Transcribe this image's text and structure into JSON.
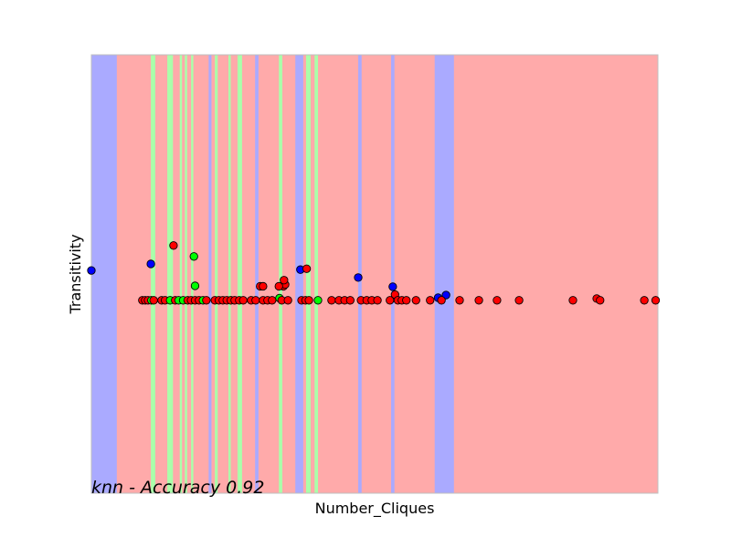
{
  "chart_data": {
    "type": "scatter",
    "title": "",
    "xlabel": "Number_Cliques",
    "ylabel": "Transitivity",
    "annotation": "knn - Accuracy 0.92",
    "x_ticks_shown": false,
    "y_ticks_shown": false,
    "grid": false,
    "xlim": [
      0,
      1000
    ],
    "ylim": [
      0,
      1000
    ],
    "class_colors": {
      "red": {
        "region": "#FFAAAA",
        "point": "#FF0000"
      },
      "green": {
        "region": "#AAFFAA",
        "point": "#00FF00"
      },
      "blue": {
        "region": "#AAAAFF",
        "point": "#0000FF"
      }
    },
    "decision_regions": [
      {
        "class": "blue",
        "from": 0,
        "to": 45
      },
      {
        "class": "red",
        "from": 45,
        "to": 105
      },
      {
        "class": "green",
        "from": 105,
        "to": 113
      },
      {
        "class": "blue",
        "from": 105,
        "to": 105
      },
      {
        "class": "red",
        "from": 113,
        "to": 118
      },
      {
        "class": "green",
        "from": 134,
        "to": 144
      },
      {
        "class": "green",
        "from": 156,
        "to": 160
      },
      {
        "class": "green",
        "from": 165,
        "to": 169
      },
      {
        "class": "green",
        "from": 176,
        "to": 180
      },
      {
        "class": "blue",
        "from": 207,
        "to": 212
      },
      {
        "class": "green",
        "from": 218,
        "to": 223
      },
      {
        "class": "green",
        "from": 242,
        "to": 246
      },
      {
        "class": "green",
        "from": 258,
        "to": 266
      },
      {
        "class": "blue",
        "from": 289,
        "to": 295
      },
      {
        "class": "green",
        "from": 331,
        "to": 337
      },
      {
        "class": "blue",
        "from": 360,
        "to": 374
      },
      {
        "class": "green",
        "from": 379,
        "to": 387
      },
      {
        "class": "green",
        "from": 394,
        "to": 400
      },
      {
        "class": "blue",
        "from": 471,
        "to": 477
      },
      {
        "class": "blue",
        "from": 529,
        "to": 535
      },
      {
        "class": "blue",
        "from": 606,
        "to": 640
      }
    ],
    "points": [
      {
        "x": 0,
        "y": 508,
        "c": "blue"
      },
      {
        "x": 105,
        "y": 523,
        "c": "blue"
      },
      {
        "x": 145,
        "y": 565,
        "c": "red"
      },
      {
        "x": 181,
        "y": 540,
        "c": "green"
      },
      {
        "x": 183,
        "y": 473,
        "c": "green"
      },
      {
        "x": 298,
        "y": 472,
        "c": "red"
      },
      {
        "x": 339,
        "y": 472,
        "c": "red"
      },
      {
        "x": 342,
        "y": 476,
        "c": "red"
      },
      {
        "x": 331,
        "y": 472,
        "c": "red"
      },
      {
        "x": 303,
        "y": 472,
        "c": "red"
      },
      {
        "x": 332,
        "y": 445,
        "c": "green"
      },
      {
        "x": 340,
        "y": 486,
        "c": "red"
      },
      {
        "x": 369,
        "y": 510,
        "c": "blue"
      },
      {
        "x": 380,
        "y": 512,
        "c": "red"
      },
      {
        "x": 471,
        "y": 492,
        "c": "blue"
      },
      {
        "x": 532,
        "y": 471,
        "c": "blue"
      },
      {
        "x": 536,
        "y": 453,
        "c": "red"
      },
      {
        "x": 612,
        "y": 446,
        "c": "blue"
      },
      {
        "x": 626,
        "y": 452,
        "c": "blue"
      },
      {
        "x": 90,
        "y": 440,
        "c": "red"
      },
      {
        "x": 95,
        "y": 440,
        "c": "red"
      },
      {
        "x": 100,
        "y": 440,
        "c": "red"
      },
      {
        "x": 106,
        "y": 440,
        "c": "green"
      },
      {
        "x": 110,
        "y": 440,
        "c": "red"
      },
      {
        "x": 124,
        "y": 440,
        "c": "red"
      },
      {
        "x": 130,
        "y": 440,
        "c": "red"
      },
      {
        "x": 139,
        "y": 440,
        "c": "green"
      },
      {
        "x": 148,
        "y": 440,
        "c": "red"
      },
      {
        "x": 154,
        "y": 440,
        "c": "green"
      },
      {
        "x": 162,
        "y": 440,
        "c": "green"
      },
      {
        "x": 170,
        "y": 440,
        "c": "red"
      },
      {
        "x": 176,
        "y": 440,
        "c": "red"
      },
      {
        "x": 183,
        "y": 440,
        "c": "red"
      },
      {
        "x": 190,
        "y": 440,
        "c": "red"
      },
      {
        "x": 197,
        "y": 440,
        "c": "green"
      },
      {
        "x": 203,
        "y": 440,
        "c": "red"
      },
      {
        "x": 218,
        "y": 440,
        "c": "red"
      },
      {
        "x": 225,
        "y": 440,
        "c": "red"
      },
      {
        "x": 232,
        "y": 440,
        "c": "red"
      },
      {
        "x": 239,
        "y": 440,
        "c": "red"
      },
      {
        "x": 246,
        "y": 440,
        "c": "red"
      },
      {
        "x": 253,
        "y": 440,
        "c": "red"
      },
      {
        "x": 261,
        "y": 440,
        "c": "red"
      },
      {
        "x": 268,
        "y": 440,
        "c": "red"
      },
      {
        "x": 282,
        "y": 440,
        "c": "red"
      },
      {
        "x": 290,
        "y": 440,
        "c": "red"
      },
      {
        "x": 303,
        "y": 440,
        "c": "red"
      },
      {
        "x": 311,
        "y": 440,
        "c": "red"
      },
      {
        "x": 319,
        "y": 440,
        "c": "red"
      },
      {
        "x": 336,
        "y": 440,
        "c": "red"
      },
      {
        "x": 347,
        "y": 440,
        "c": "red"
      },
      {
        "x": 371,
        "y": 440,
        "c": "red"
      },
      {
        "x": 378,
        "y": 440,
        "c": "red"
      },
      {
        "x": 384,
        "y": 440,
        "c": "red"
      },
      {
        "x": 400,
        "y": 440,
        "c": "green"
      },
      {
        "x": 424,
        "y": 440,
        "c": "red"
      },
      {
        "x": 437,
        "y": 440,
        "c": "red"
      },
      {
        "x": 447,
        "y": 440,
        "c": "red"
      },
      {
        "x": 457,
        "y": 440,
        "c": "red"
      },
      {
        "x": 476,
        "y": 440,
        "c": "red"
      },
      {
        "x": 486,
        "y": 440,
        "c": "red"
      },
      {
        "x": 495,
        "y": 440,
        "c": "red"
      },
      {
        "x": 505,
        "y": 440,
        "c": "red"
      },
      {
        "x": 527,
        "y": 440,
        "c": "red"
      },
      {
        "x": 541,
        "y": 440,
        "c": "red"
      },
      {
        "x": 548,
        "y": 440,
        "c": "red"
      },
      {
        "x": 556,
        "y": 440,
        "c": "red"
      },
      {
        "x": 573,
        "y": 440,
        "c": "red"
      },
      {
        "x": 598,
        "y": 440,
        "c": "red"
      },
      {
        "x": 618,
        "y": 440,
        "c": "red"
      },
      {
        "x": 650,
        "y": 440,
        "c": "red"
      },
      {
        "x": 684,
        "y": 440,
        "c": "red"
      },
      {
        "x": 716,
        "y": 440,
        "c": "red"
      },
      {
        "x": 755,
        "y": 440,
        "c": "red"
      },
      {
        "x": 850,
        "y": 440,
        "c": "red"
      },
      {
        "x": 892,
        "y": 444,
        "c": "red"
      },
      {
        "x": 898,
        "y": 440,
        "c": "red"
      },
      {
        "x": 976,
        "y": 440,
        "c": "red"
      },
      {
        "x": 996,
        "y": 440,
        "c": "red"
      }
    ]
  }
}
